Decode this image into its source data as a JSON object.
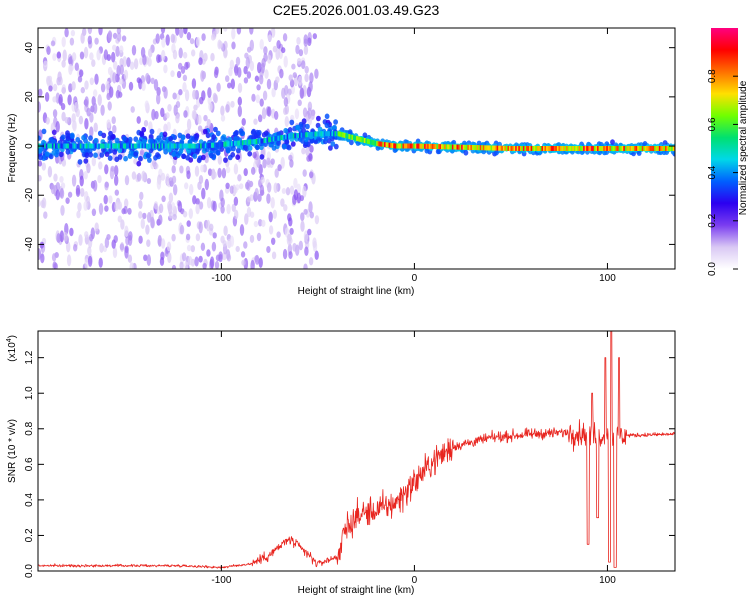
{
  "figure": {
    "title": "C2E5.2026.001.03.49.G23"
  },
  "colors": {
    "signal_line": "#e8251f",
    "frame": "#000000"
  },
  "chart_data": [
    {
      "type": "heatmap",
      "title": "C2E5.2026.001.03.49.G23",
      "xlabel": "Height of straight line (km)",
      "ylabel": "Frequency (Hz)",
      "xlim": [
        -195,
        135
      ],
      "ylim": [
        -50,
        48
      ],
      "x_ticks": [
        -100,
        0,
        100
      ],
      "x_tick_labels": [
        "-100",
        "0",
        "100"
      ],
      "y_ticks": [
        -40,
        -20,
        0,
        20,
        40
      ],
      "y_tick_labels": [
        "-40",
        "-20",
        "0",
        "20",
        "40"
      ],
      "colorbar": {
        "label": "Normalized spectral amplitude",
        "range": [
          0,
          1
        ],
        "ticks": [
          0.0,
          0.2,
          0.4,
          0.6,
          0.8
        ],
        "tick_labels": [
          "0.0",
          "0.2",
          "0.4",
          "0.6",
          "0.8"
        ],
        "colormap": [
          "#ffffff",
          "#d9c8f4",
          "#7a3df0",
          "#2b00f0",
          "#0060ff",
          "#00d8e8",
          "#00e070",
          "#70ff00",
          "#ffe000",
          "#ff7000",
          "#ff0000",
          "#ff0080"
        ]
      },
      "ridge_trend": [
        {
          "x": -195,
          "y": 0
        },
        {
          "x": -150,
          "y": 0
        },
        {
          "x": -110,
          "y": 0
        },
        {
          "x": -80,
          "y": 2
        },
        {
          "x": -65,
          "y": 4
        },
        {
          "x": -50,
          "y": 5
        },
        {
          "x": -40,
          "y": 5
        },
        {
          "x": -30,
          "y": 3
        },
        {
          "x": -20,
          "y": 1
        },
        {
          "x": -10,
          "y": 0
        },
        {
          "x": 0,
          "y": 0
        },
        {
          "x": 50,
          "y": -1
        },
        {
          "x": 100,
          "y": -1
        },
        {
          "x": 135,
          "y": -1
        }
      ],
      "scatter_extent_x": [
        -195,
        -50
      ],
      "scatter_extent_y": [
        -50,
        48
      ]
    },
    {
      "type": "line",
      "xlabel": "Height of straight line (km)",
      "ylabel": "SNR (10 * v/v)",
      "y_multiplier": "(x10",
      "y_multiplier_exponent": "4",
      "y_multiplier_close": ")",
      "xlim": [
        -195,
        135
      ],
      "ylim": [
        0,
        1.35
      ],
      "x_ticks": [
        -100,
        0,
        100
      ],
      "x_tick_labels": [
        "-100",
        "0",
        "100"
      ],
      "y_ticks": [
        0,
        0.2,
        0.4,
        0.6,
        0.8,
        1.0,
        1.2
      ],
      "y_tick_labels": [
        "0.0",
        "0.2",
        "0.4",
        "0.6",
        "0.8",
        "1.0",
        "1.2"
      ],
      "series": [
        {
          "name": "SNR",
          "trend": [
            {
              "x": -195,
              "y": 0.03
            },
            {
              "x": -120,
              "y": 0.03
            },
            {
              "x": -100,
              "y": 0.02
            },
            {
              "x": -85,
              "y": 0.04
            },
            {
              "x": -75,
              "y": 0.09
            },
            {
              "x": -65,
              "y": 0.18
            },
            {
              "x": -58,
              "y": 0.12
            },
            {
              "x": -50,
              "y": 0.04
            },
            {
              "x": -40,
              "y": 0.08
            },
            {
              "x": -35,
              "y": 0.25
            },
            {
              "x": -28,
              "y": 0.32
            },
            {
              "x": -20,
              "y": 0.34
            },
            {
              "x": -10,
              "y": 0.38
            },
            {
              "x": 0,
              "y": 0.5
            },
            {
              "x": 10,
              "y": 0.62
            },
            {
              "x": 20,
              "y": 0.7
            },
            {
              "x": 40,
              "y": 0.75
            },
            {
              "x": 60,
              "y": 0.77
            },
            {
              "x": 80,
              "y": 0.78
            },
            {
              "x": 100,
              "y": 0.76
            },
            {
              "x": 135,
              "y": 0.77
            }
          ],
          "dips": [
            {
              "x": 90,
              "y": 0.15
            },
            {
              "x": 95,
              "y": 0.3
            },
            {
              "x": 101,
              "y": 0.05
            },
            {
              "x": 104,
              "y": 0.02
            }
          ],
          "spikes": [
            {
              "x": 99,
              "y": 1.2
            },
            {
              "x": 102,
              "y": 1.35
            },
            {
              "x": 106,
              "y": 1.2
            },
            {
              "x": 92,
              "y": 1.0
            }
          ]
        }
      ]
    }
  ]
}
